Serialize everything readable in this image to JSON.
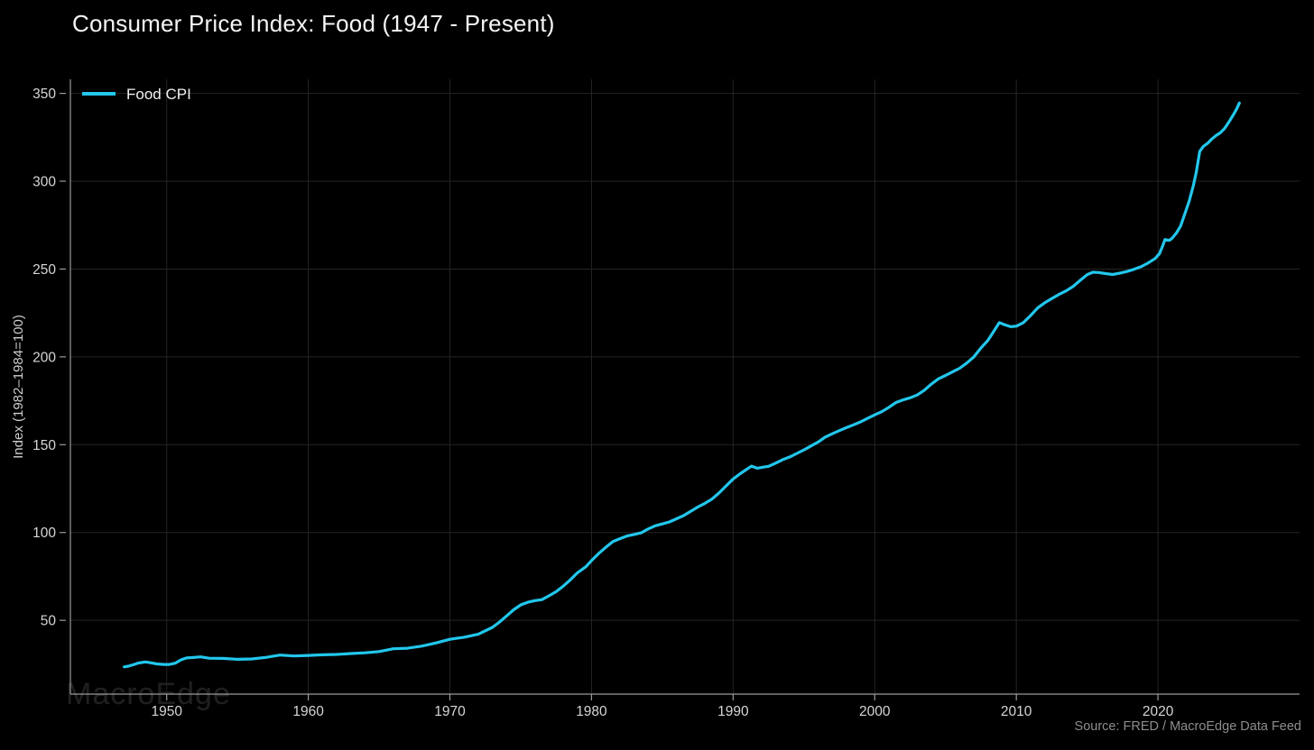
{
  "header": {
    "title": "Consumer Price Index: Food (1947 - Present)"
  },
  "annotations": {
    "watermark": "MacroEdge",
    "source": "Source: FRED / MacroEdge Data Feed"
  },
  "colors": {
    "background": "#000000",
    "line": "#22c7ec",
    "grid": "#242424",
    "spine": "#9a9a9a",
    "tick": "#9a9a9a",
    "tick_label": "#d6d6d6",
    "axis_label": "#cfcfcf",
    "legend_label": "#f0f0f0",
    "source_text": "#8d8d8d",
    "watermark": "rgba(255,255,255,0.12)"
  },
  "chart_data": {
    "type": "line",
    "title": "Consumer Price Index: Food (1947 - Present)",
    "xlabel": "",
    "ylabel": "Index (1982–1984=100)",
    "grid": true,
    "legend_position": "top-left",
    "xlim": [
      1943.2,
      2030
    ],
    "ylim": [
      8,
      358
    ],
    "xticks": [
      1950,
      1960,
      1970,
      1980,
      1990,
      2000,
      2010,
      2020
    ],
    "yticks": [
      50,
      100,
      150,
      200,
      250,
      300,
      350
    ],
    "legend": [
      {
        "label": "Food CPI",
        "color": "#22c7ec"
      }
    ],
    "series": [
      {
        "name": "Food CPI",
        "color": "#22c7ec",
        "points": [
          [
            1947.0,
            23.5
          ],
          [
            1947.3,
            23.9
          ],
          [
            1947.7,
            24.9
          ],
          [
            1948.0,
            25.7
          ],
          [
            1948.5,
            26.3
          ],
          [
            1948.9,
            25.8
          ],
          [
            1949.3,
            25.2
          ],
          [
            1949.8,
            24.9
          ],
          [
            1950.2,
            24.9
          ],
          [
            1950.6,
            25.6
          ],
          [
            1951.0,
            27.5
          ],
          [
            1951.4,
            28.6
          ],
          [
            1951.9,
            28.9
          ],
          [
            1952.4,
            29.2
          ],
          [
            1953.0,
            28.4
          ],
          [
            1954.0,
            28.3
          ],
          [
            1955.0,
            27.8
          ],
          [
            1956.0,
            28.0
          ],
          [
            1957.0,
            28.9
          ],
          [
            1958.0,
            30.2
          ],
          [
            1959.0,
            29.7
          ],
          [
            1960.0,
            30.0
          ],
          [
            1961.0,
            30.4
          ],
          [
            1962.0,
            30.6
          ],
          [
            1963.0,
            31.1
          ],
          [
            1964.0,
            31.5
          ],
          [
            1965.0,
            32.2
          ],
          [
            1966.0,
            33.8
          ],
          [
            1967.0,
            34.1
          ],
          [
            1968.0,
            35.3
          ],
          [
            1969.0,
            37.1
          ],
          [
            1970.0,
            39.2
          ],
          [
            1971.0,
            40.4
          ],
          [
            1972.0,
            42.1
          ],
          [
            1973.0,
            46.0
          ],
          [
            1973.5,
            49.0
          ],
          [
            1974.0,
            52.5
          ],
          [
            1974.5,
            56.0
          ],
          [
            1975.0,
            58.8
          ],
          [
            1975.5,
            60.3
          ],
          [
            1976.0,
            61.2
          ],
          [
            1976.5,
            61.8
          ],
          [
            1977.0,
            64.0
          ],
          [
            1977.5,
            66.3
          ],
          [
            1978.0,
            69.5
          ],
          [
            1978.5,
            73.0
          ],
          [
            1979.0,
            77.0
          ],
          [
            1979.6,
            80.5
          ],
          [
            1980.0,
            84.0
          ],
          [
            1980.5,
            88.0
          ],
          [
            1981.0,
            91.5
          ],
          [
            1981.5,
            94.8
          ],
          [
            1982.0,
            96.5
          ],
          [
            1982.5,
            98.0
          ],
          [
            1983.0,
            98.9
          ],
          [
            1983.5,
            99.8
          ],
          [
            1984.0,
            102.0
          ],
          [
            1984.5,
            103.8
          ],
          [
            1985.0,
            104.9
          ],
          [
            1985.5,
            106.0
          ],
          [
            1986.0,
            107.8
          ],
          [
            1986.5,
            109.6
          ],
          [
            1987.0,
            112.0
          ],
          [
            1987.5,
            114.5
          ],
          [
            1988.0,
            116.6
          ],
          [
            1988.5,
            119.0
          ],
          [
            1989.0,
            122.5
          ],
          [
            1989.5,
            126.5
          ],
          [
            1990.0,
            130.5
          ],
          [
            1990.5,
            133.5
          ],
          [
            1991.0,
            136.2
          ],
          [
            1991.3,
            137.8
          ],
          [
            1991.7,
            136.6
          ],
          [
            1992.0,
            137.0
          ],
          [
            1992.5,
            137.7
          ],
          [
            1993.0,
            139.5
          ],
          [
            1993.5,
            141.5
          ],
          [
            1994.0,
            143.0
          ],
          [
            1994.5,
            145.0
          ],
          [
            1995.0,
            147.0
          ],
          [
            1995.5,
            149.3
          ],
          [
            1996.0,
            151.5
          ],
          [
            1996.5,
            154.3
          ],
          [
            1997.0,
            156.2
          ],
          [
            1997.5,
            158.0
          ],
          [
            1998.0,
            159.7
          ],
          [
            1998.5,
            161.3
          ],
          [
            1999.0,
            163.0
          ],
          [
            1999.5,
            165.0
          ],
          [
            2000.0,
            167.0
          ],
          [
            2000.5,
            168.8
          ],
          [
            2001.0,
            171.3
          ],
          [
            2001.5,
            174.0
          ],
          [
            2002.0,
            175.5
          ],
          [
            2002.5,
            176.7
          ],
          [
            2003.0,
            178.3
          ],
          [
            2003.5,
            181.0
          ],
          [
            2004.0,
            184.5
          ],
          [
            2004.5,
            187.5
          ],
          [
            2005.0,
            189.4
          ],
          [
            2005.5,
            191.5
          ],
          [
            2006.0,
            193.5
          ],
          [
            2006.5,
            196.5
          ],
          [
            2007.0,
            200.0
          ],
          [
            2007.5,
            205.0
          ],
          [
            2008.0,
            209.5
          ],
          [
            2008.4,
            214.5
          ],
          [
            2008.8,
            219.5
          ],
          [
            2009.2,
            218.2
          ],
          [
            2009.6,
            217.2
          ],
          [
            2010.0,
            217.5
          ],
          [
            2010.5,
            219.5
          ],
          [
            2011.0,
            223.5
          ],
          [
            2011.5,
            227.8
          ],
          [
            2012.0,
            230.8
          ],
          [
            2012.5,
            233.2
          ],
          [
            2013.0,
            235.5
          ],
          [
            2013.5,
            237.5
          ],
          [
            2014.0,
            240.0
          ],
          [
            2014.5,
            243.5
          ],
          [
            2015.0,
            246.8
          ],
          [
            2015.4,
            248.2
          ],
          [
            2015.8,
            248.0
          ],
          [
            2016.3,
            247.4
          ],
          [
            2016.8,
            246.9
          ],
          [
            2017.3,
            247.6
          ],
          [
            2017.8,
            248.6
          ],
          [
            2018.3,
            249.8
          ],
          [
            2018.8,
            251.3
          ],
          [
            2019.3,
            253.4
          ],
          [
            2019.8,
            256.0
          ],
          [
            2020.1,
            258.7
          ],
          [
            2020.35,
            263.5
          ],
          [
            2020.5,
            266.8
          ],
          [
            2020.8,
            266.3
          ],
          [
            2021.0,
            267.5
          ],
          [
            2021.3,
            270.5
          ],
          [
            2021.6,
            274.5
          ],
          [
            2021.9,
            281.5
          ],
          [
            2022.2,
            288.5
          ],
          [
            2022.5,
            297.5
          ],
          [
            2022.7,
            305.0
          ],
          [
            2022.95,
            317.0
          ],
          [
            2023.2,
            319.8
          ],
          [
            2023.5,
            321.5
          ],
          [
            2023.8,
            324.0
          ],
          [
            2024.1,
            326.0
          ],
          [
            2024.4,
            327.5
          ],
          [
            2024.7,
            330.0
          ],
          [
            2025.0,
            333.5
          ],
          [
            2025.3,
            337.5
          ],
          [
            2025.55,
            341.0
          ],
          [
            2025.75,
            344.5
          ]
        ]
      }
    ]
  }
}
